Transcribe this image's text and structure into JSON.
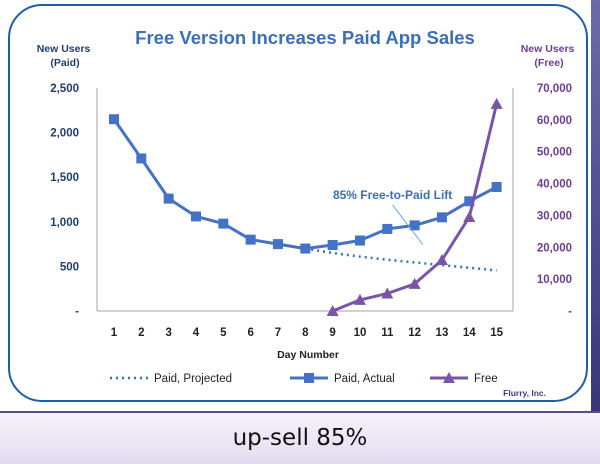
{
  "slide": {
    "caption": "up-sell 85%",
    "credit": "Flurry, Inc.",
    "colors": {
      "frame": "#1f5fa8",
      "caption_border": "#5a4b8e"
    }
  },
  "chart_data": {
    "type": "line",
    "title": "Free Version Increases Paid App Sales",
    "xlabel": "Day Number",
    "ylabel_left": "New Users\n(Paid)",
    "ylabel_right": "New Users\n(Free)",
    "x": [
      1,
      2,
      3,
      4,
      5,
      6,
      7,
      8,
      9,
      10,
      11,
      12,
      13,
      14,
      15
    ],
    "xlim": [
      1,
      15
    ],
    "ylim_left": [
      0,
      2500
    ],
    "ylim_right": [
      0,
      70000
    ],
    "y_left_ticks": [
      "-",
      "500",
      "1,000",
      "1,500",
      "2,000",
      "2,500"
    ],
    "y_right_ticks": [
      "-",
      "10,000",
      "20,000",
      "30,000",
      "40,000",
      "50,000",
      "60,000",
      "70,000"
    ],
    "grid": false,
    "legend": "bottom",
    "annotation": {
      "text": "85% Free-to-Paid Lift",
      "x": 12,
      "y": 1300,
      "arrow_to": {
        "x": 12.3,
        "y": 700
      }
    },
    "series": [
      {
        "name": "Paid, Projected",
        "axis": "left",
        "style": "dotted",
        "color": "#2e75b6",
        "x": [
          8,
          9,
          10,
          11,
          12,
          13,
          14,
          15
        ],
        "values": [
          700,
          650,
          610,
          575,
          545,
          515,
          485,
          455
        ]
      },
      {
        "name": "Paid, Actual",
        "axis": "left",
        "style": "solid",
        "marker": "square",
        "color": "#4472c4",
        "x": [
          1,
          2,
          3,
          4,
          5,
          6,
          7,
          8,
          9,
          10,
          11,
          12,
          13,
          14,
          15
        ],
        "values": [
          2150,
          1710,
          1260,
          1060,
          980,
          800,
          750,
          700,
          740,
          790,
          920,
          960,
          1050,
          1230,
          1390
        ]
      },
      {
        "name": "Free",
        "axis": "right",
        "style": "solid",
        "marker": "triangle",
        "color": "#7a54a8",
        "x": [
          9,
          10,
          11,
          12,
          13,
          14,
          15
        ],
        "values": [
          0,
          3500,
          5500,
          8500,
          16000,
          29500,
          65000
        ]
      }
    ]
  }
}
